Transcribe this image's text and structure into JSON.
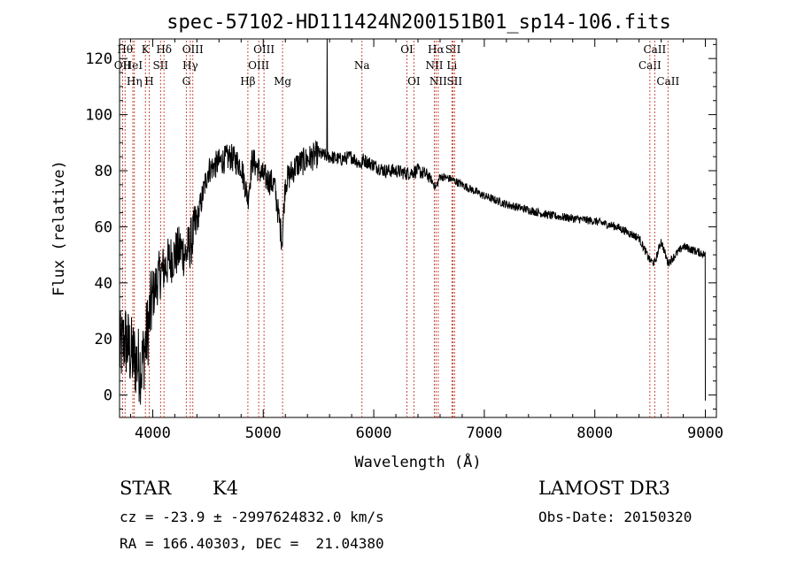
{
  "chart_data": {
    "type": "line",
    "title": "spec-57102-HD111424N200151B01_sp14-106.fits",
    "xlabel": "Wavelength (Å)",
    "ylabel": "Flux (relative)",
    "xlim": [
      3700,
      9100
    ],
    "ylim": [
      -8,
      127
    ],
    "xticks": [
      4000,
      5000,
      6000,
      7000,
      8000,
      9000
    ],
    "yticks": [
      0,
      20,
      40,
      60,
      80,
      100,
      120
    ],
    "spectrum_anchors": {
      "x": [
        3700,
        3750,
        3800,
        3850,
        3900,
        3950,
        4000,
        4050,
        4100,
        4150,
        4200,
        4250,
        4300,
        4350,
        4400,
        4500,
        4600,
        4700,
        4800,
        4861,
        4900,
        5000,
        5100,
        5170,
        5200,
        5300,
        5400,
        5500,
        5600,
        5700,
        5800,
        5890,
        5900,
        6000,
        6100,
        6200,
        6300,
        6400,
        6500,
        6563,
        6600,
        6700,
        6800,
        7000,
        7200,
        7400,
        7600,
        7800,
        8000,
        8200,
        8400,
        8498,
        8542,
        8600,
        8662,
        8800,
        9000
      ],
      "flux": [
        15,
        20,
        15,
        12,
        10,
        22,
        35,
        42,
        45,
        48,
        50,
        52,
        50,
        55,
        62,
        80,
        83,
        85,
        82,
        70,
        84,
        78,
        75,
        55,
        76,
        82,
        84,
        86,
        85,
        84,
        85,
        82,
        84,
        82,
        80,
        80,
        79,
        80,
        78,
        74,
        78,
        77,
        75,
        71,
        68,
        66,
        64,
        63,
        62,
        60,
        56,
        48,
        47,
        55,
        47,
        53,
        50
      ]
    },
    "emission_spike": {
      "x": 5577,
      "flux": 128
    },
    "line_markers": [
      {
        "wavelength": 3727,
        "label": "OII",
        "row": 1
      },
      {
        "wavelength": 3750,
        "label": "Hθ",
        "row": 0
      },
      {
        "wavelength": 3820,
        "label": "HeI",
        "row": 1
      },
      {
        "wavelength": 3834,
        "label": "Hη",
        "row": 2
      },
      {
        "wavelength": 3934,
        "label": "K",
        "row": 0
      },
      {
        "wavelength": 3968,
        "label": "H",
        "row": 2
      },
      {
        "wavelength": 4071,
        "label": "SII",
        "row": 1
      },
      {
        "wavelength": 4102,
        "label": "Hδ",
        "row": 0
      },
      {
        "wavelength": 4304,
        "label": "G",
        "row": 2
      },
      {
        "wavelength": 4340,
        "label": "Hγ",
        "row": 1
      },
      {
        "wavelength": 4363,
        "label": "OIII",
        "row": 0
      },
      {
        "wavelength": 4861,
        "label": "Hβ",
        "row": 2
      },
      {
        "wavelength": 4959,
        "label": "OIII",
        "row": 1
      },
      {
        "wavelength": 5007,
        "label": "OIII",
        "row": 0
      },
      {
        "wavelength": 5175,
        "label": "Mg",
        "row": 2
      },
      {
        "wavelength": 5893,
        "label": "Na",
        "row": 1
      },
      {
        "wavelength": 6300,
        "label": "OI",
        "row": 0
      },
      {
        "wavelength": 6363,
        "label": "OI",
        "row": 2
      },
      {
        "wavelength": 6548,
        "label": "NII",
        "row": 1
      },
      {
        "wavelength": 6563,
        "label": "Hα",
        "row": 0
      },
      {
        "wavelength": 6583,
        "label": "NII",
        "row": 2
      },
      {
        "wavelength": 6707,
        "label": "Li",
        "row": 1
      },
      {
        "wavelength": 6717,
        "label": "SII",
        "row": 0
      },
      {
        "wavelength": 6731,
        "label": "SII",
        "row": 2
      },
      {
        "wavelength": 8498,
        "label": "CaII",
        "row": 1
      },
      {
        "wavelength": 8542,
        "label": "CaII",
        "row": 0
      },
      {
        "wavelength": 8662,
        "label": "CaII",
        "row": 2
      }
    ]
  },
  "info": {
    "object_class": "STAR",
    "subclass": "K4",
    "survey": "LAMOST DR3",
    "redshift_line": "cz = -23.9 ± -2997624832.0 km/s",
    "obs_date": "Obs-Date: 20150320",
    "coords": "RA = 166.40303, DEC =  21.04380"
  },
  "colors": {
    "axes": "#000000",
    "spectrum": "#000000",
    "line_markers": "#c0392b",
    "background": "#ffffff"
  }
}
